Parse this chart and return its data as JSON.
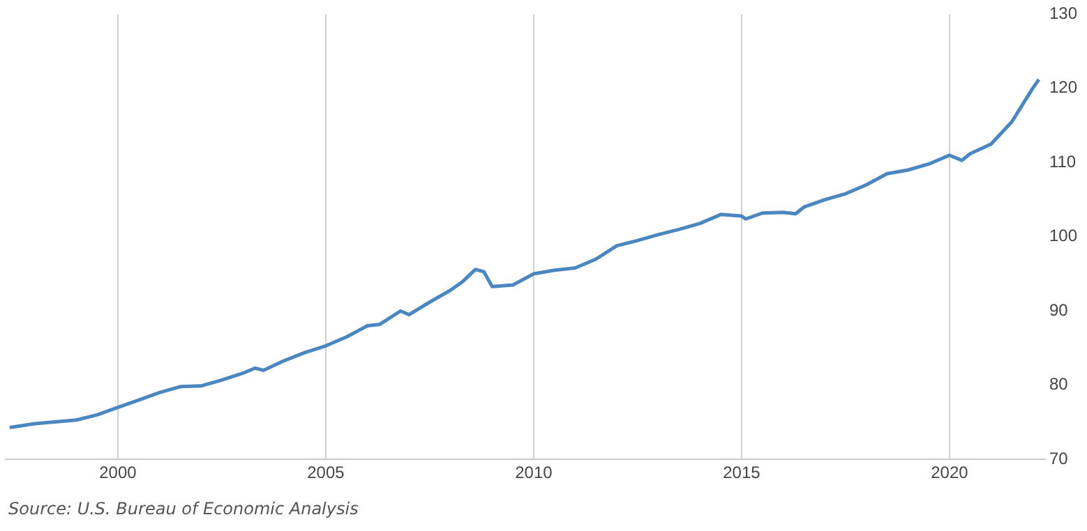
{
  "chart_data": {
    "type": "line",
    "x": [
      1997.4,
      1998,
      1999,
      1999.5,
      2000,
      2000.5,
      2001,
      2001.5,
      2002,
      2002.5,
      2003,
      2003.3,
      2003.5,
      2004,
      2004.5,
      2005,
      2005.5,
      2006,
      2006.3,
      2006.8,
      2007,
      2007.5,
      2008,
      2008.3,
      2008.6,
      2008.8,
      2009,
      2009.5,
      2010,
      2010.5,
      2011,
      2011.5,
      2012,
      2012.5,
      2013,
      2013.5,
      2014,
      2014.5,
      2015,
      2015.1,
      2015.5,
      2016,
      2016.3,
      2016.5,
      2017,
      2017.5,
      2018,
      2018.5,
      2019,
      2019.5,
      2020,
      2020.3,
      2020.5,
      2021,
      2021.5,
      2022,
      2022.15
    ],
    "series": [
      {
        "color": "#4a86bf",
        "values": [
          74.3,
          74.8,
          75.3,
          76,
          77,
          78,
          79,
          79.8,
          79.9,
          80.7,
          81.6,
          82.3,
          82,
          83.3,
          84.4,
          85.3,
          86.5,
          88,
          88.2,
          90,
          89.5,
          91.2,
          92.8,
          94,
          95.6,
          95.3,
          93.3,
          93.5,
          95,
          95.5,
          95.8,
          97,
          98.8,
          99.5,
          100.3,
          101,
          101.8,
          103,
          102.8,
          102.4,
          103.2,
          103.3,
          103.1,
          104,
          105,
          105.8,
          107,
          108.5,
          109,
          109.8,
          111,
          110.3,
          111.2,
          112.5,
          115.5,
          120,
          121.2
        ]
      }
    ],
    "xlim": [
      1997.3,
      2022.3
    ],
    "xticks": [
      2000,
      2005,
      2010,
      2015,
      2020
    ],
    "ylim": [
      70,
      130
    ],
    "yticks": [
      70,
      80,
      90,
      100,
      110,
      120,
      130
    ],
    "grid": "x",
    "legend": false,
    "marker": "none",
    "line_style": "solid",
    "annotations": [
      "Source: U.S. Bureau of Economic Analysis"
    ]
  }
}
